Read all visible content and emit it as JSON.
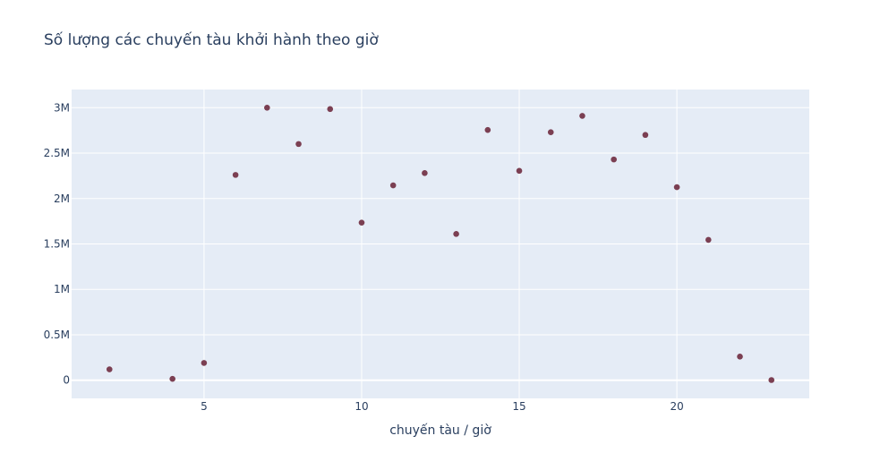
{
  "chart_data": {
    "type": "scatter",
    "title": "Số lượng các chuyến tàu khởi hành theo giờ",
    "xlabel": "chuyến tàu / giờ",
    "ylabel": "",
    "xlim": [
      0.8,
      24.2
    ],
    "ylim": [
      -200000,
      3200000
    ],
    "x_ticks": [
      5,
      10,
      15,
      20
    ],
    "y_ticks": [
      {
        "value": 0,
        "label": "0"
      },
      {
        "value": 500000,
        "label": "0.5M"
      },
      {
        "value": 1000000,
        "label": "1M"
      },
      {
        "value": 1500000,
        "label": "1.5M"
      },
      {
        "value": 2000000,
        "label": "2M"
      },
      {
        "value": 2500000,
        "label": "2.5M"
      },
      {
        "value": 3000000,
        "label": "3M"
      }
    ],
    "grid": true,
    "marker_color": "#7b3f52",
    "background_color": "#e5ecf6",
    "points": [
      {
        "x": 2,
        "y": 120000
      },
      {
        "x": 4,
        "y": 15000
      },
      {
        "x": 5,
        "y": 190000
      },
      {
        "x": 6,
        "y": 2260000
      },
      {
        "x": 7,
        "y": 3000000
      },
      {
        "x": 8,
        "y": 2600000
      },
      {
        "x": 9,
        "y": 2985000
      },
      {
        "x": 10,
        "y": 1735000
      },
      {
        "x": 11,
        "y": 2145000
      },
      {
        "x": 12,
        "y": 2280000
      },
      {
        "x": 13,
        "y": 1610000
      },
      {
        "x": 14,
        "y": 2755000
      },
      {
        "x": 15,
        "y": 2305000
      },
      {
        "x": 16,
        "y": 2730000
      },
      {
        "x": 17,
        "y": 2910000
      },
      {
        "x": 18,
        "y": 2430000
      },
      {
        "x": 19,
        "y": 2700000
      },
      {
        "x": 20,
        "y": 2125000
      },
      {
        "x": 21,
        "y": 1545000
      },
      {
        "x": 22,
        "y": 260000
      },
      {
        "x": 23,
        "y": 2000
      }
    ]
  }
}
